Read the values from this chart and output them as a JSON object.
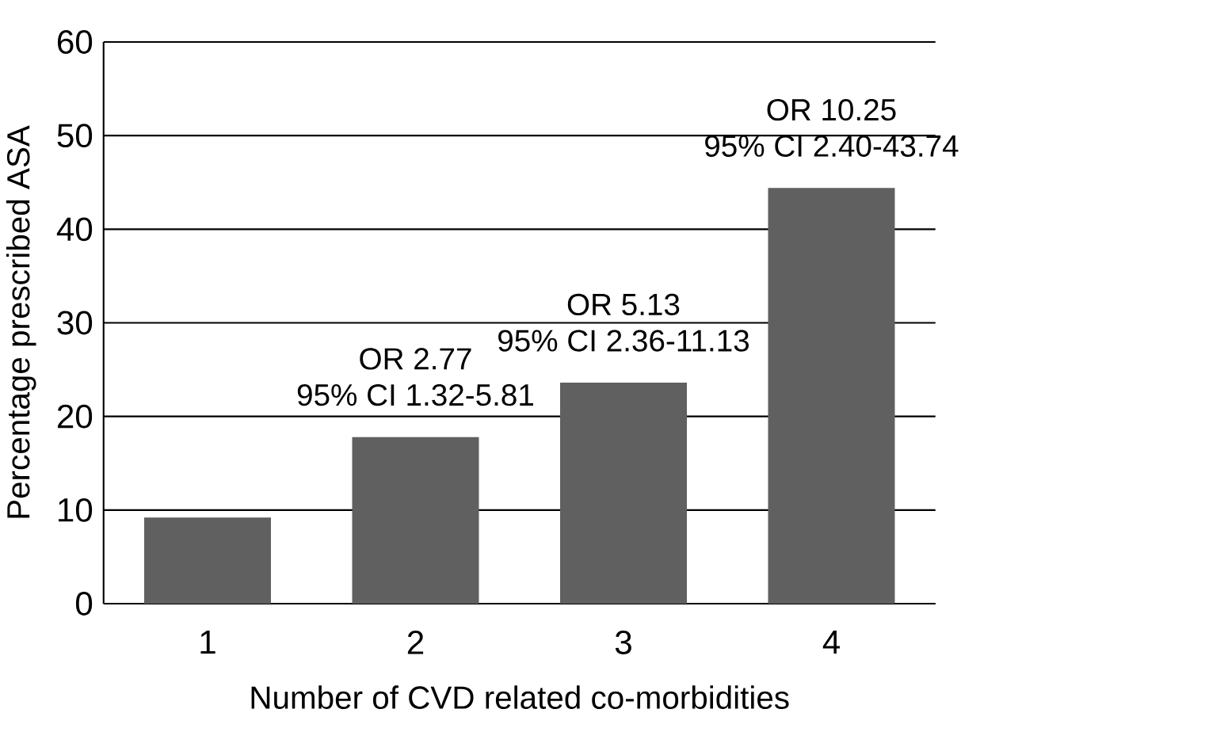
{
  "chart_data": {
    "type": "bar",
    "xlabel": "Number of CVD related co-morbidities",
    "ylabel": "Percentage prescribed ASA",
    "categories": [
      "1",
      "2",
      "3",
      "4"
    ],
    "values": [
      9.2,
      17.8,
      23.6,
      44.4
    ],
    "color": "#606060",
    "ylim": [
      0,
      60
    ],
    "yticks": [
      0,
      10,
      20,
      30,
      40,
      50,
      60
    ],
    "grid": "y",
    "annotations": [
      {
        "text": "OR 2.77",
        "x": "2",
        "y": 17.8
      },
      {
        "text": "95% CI 1.32-5.81",
        "x": "2",
        "y": 17.8
      },
      {
        "text": "OR 5.13",
        "x": "3",
        "y": 23.6
      },
      {
        "text": "95% CI 2.36-11.13",
        "x": "3",
        "y": 23.6
      },
      {
        "text": "OR 10.25",
        "x": "4",
        "y": 44.4
      },
      {
        "text": "95% CI 2.40-43.74",
        "x": "4",
        "y": 44.4
      }
    ]
  }
}
